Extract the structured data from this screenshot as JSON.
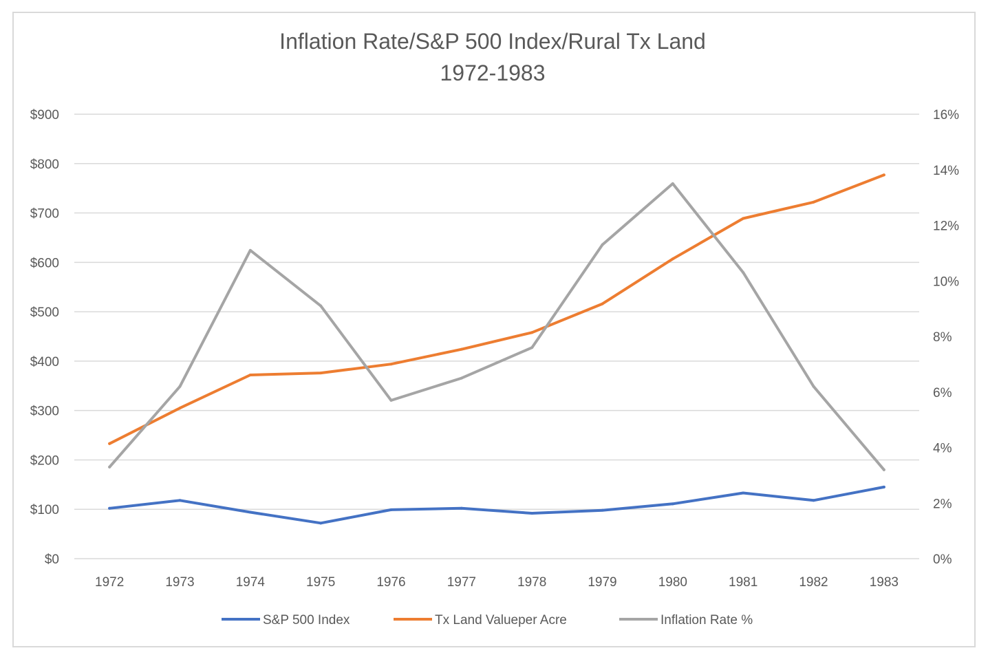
{
  "chart_data": {
    "type": "line",
    "title": "Inflation Rate/S&P 500 Index/Rural Tx Land",
    "subtitle": "1972-1983",
    "categories": [
      "1972",
      "1973",
      "1974",
      "1975",
      "1976",
      "1977",
      "1978",
      "1979",
      "1980",
      "1981",
      "1982",
      "1983"
    ],
    "y_left": {
      "min": 0,
      "max": 900,
      "step": 100,
      "tick_labels": [
        "$0",
        "$100",
        "$200",
        "$300",
        "$400",
        "$500",
        "$600",
        "$700",
        "$800",
        "$900"
      ]
    },
    "y_right": {
      "min": 0,
      "max": 16,
      "step": 2,
      "tick_labels": [
        "0%",
        "2%",
        "4%",
        "6%",
        "8%",
        "10%",
        "12%",
        "14%",
        "16%"
      ]
    },
    "grid": true,
    "legend_position": "bottom",
    "series": [
      {
        "name": "S&P 500 Index",
        "axis": "left",
        "color": "#4472c4",
        "values": [
          102,
          118,
          94,
          72,
          99,
          102,
          92,
          98,
          111,
          133,
          118,
          145
        ]
      },
      {
        "name": "Tx Land Valueper Acre",
        "axis": "left",
        "color": "#ed7d31",
        "values": [
          233,
          305,
          372,
          376,
          394,
          424,
          458,
          516,
          607,
          689,
          722,
          777
        ]
      },
      {
        "name": "Inflation Rate %",
        "axis": "right",
        "color": "#a5a5a5",
        "values": [
          3.3,
          6.2,
          11.1,
          9.1,
          5.7,
          6.5,
          7.6,
          11.3,
          13.5,
          10.3,
          6.2,
          3.2
        ]
      }
    ]
  }
}
